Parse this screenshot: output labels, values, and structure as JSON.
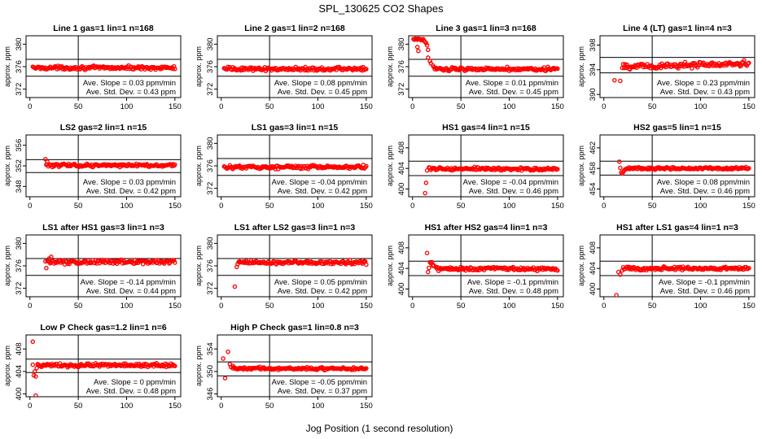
{
  "title": "SPL_130625  CO2 Shapes",
  "xlabel": "Jog Position (1 second resolution)",
  "colors": {
    "points": "#ff0000",
    "axes": "#000000"
  },
  "chart_data": [
    {
      "type": "scatter",
      "title": "Line 1 gas=1 lin=1 n=168",
      "ylabel": "approx. ppm",
      "xlim": [
        -4,
        156
      ],
      "ylim": [
        370.5,
        381.5
      ],
      "xticks": [
        0,
        50,
        100,
        150
      ],
      "yticks": [
        372,
        376,
        380
      ],
      "hlines": [
        377.3,
        374.3
      ],
      "vline": 50,
      "slope": "Ave. Slope = 0.03  ppm/min",
      "stddev": "Ave. Std. Dev. = 0.43  ppm",
      "start_x": 1,
      "settle_x": 3,
      "initial": [],
      "baseline": 375.8,
      "noise": 0.18,
      "points": []
    },
    {
      "type": "scatter",
      "title": "Line 2 gas=1 lin=2 n=168",
      "ylabel": "approx. ppm",
      "xlim": [
        -4,
        156
      ],
      "ylim": [
        370.5,
        381.5
      ],
      "xticks": [
        0,
        50,
        100,
        150
      ],
      "yticks": [
        372,
        376,
        380
      ],
      "hlines": [
        377.3,
        374.3
      ],
      "vline": 50,
      "slope": "Ave. Slope = 0.08  ppm/min",
      "stddev": "Ave. Std. Dev. = 0.45  ppm",
      "start_x": 1,
      "settle_x": 3,
      "initial": [],
      "baseline": 375.6,
      "noise": 0.2,
      "points": []
    },
    {
      "type": "scatter",
      "title": "Line 3 gas=1 lin=3 n=168",
      "ylabel": "approx. ppm",
      "xlim": [
        -4,
        156
      ],
      "ylim": [
        370.5,
        381.5
      ],
      "xticks": [
        0,
        50,
        100,
        150
      ],
      "yticks": [
        372,
        376,
        380
      ],
      "hlines": [
        377.3,
        374.3
      ],
      "vline": 50,
      "slope": "Ave. Slope = 0.01  ppm/min",
      "stddev": "Ave. Std. Dev. = 0.45  ppm",
      "start_x": 1,
      "settle_x": 22,
      "initial": [
        [
          1,
          380.9
        ],
        [
          2,
          380.8
        ],
        [
          3,
          381.0
        ],
        [
          4,
          380.9
        ],
        [
          5,
          380.8
        ],
        [
          6,
          381.0
        ],
        [
          7,
          380.9
        ],
        [
          8,
          380.9
        ],
        [
          9,
          380.7
        ],
        [
          10,
          380.8
        ],
        [
          11,
          380.9
        ],
        [
          12,
          380.6
        ],
        [
          13,
          380.4
        ],
        [
          5,
          379.5
        ],
        [
          6,
          378.8
        ],
        [
          14,
          380.2
        ],
        [
          15,
          379.8
        ],
        [
          16,
          379.0
        ],
        [
          16,
          377.6
        ],
        [
          18,
          377.0
        ],
        [
          19,
          376.6
        ],
        [
          21,
          376.2
        ]
      ],
      "baseline": 375.6,
      "noise": 0.18,
      "points": []
    },
    {
      "type": "scatter",
      "title": "Line 4 (LT) gas=1 lin=4 n=3",
      "ylabel": "approx. ppm",
      "xlim": [
        -4,
        156
      ],
      "ylim": [
        389.5,
        399.5
      ],
      "xticks": [
        0,
        50,
        100,
        150
      ],
      "yticks": [
        390,
        394,
        398
      ],
      "hlines": [
        396.0,
        393.5
      ],
      "vline": 50,
      "slope": "Ave. Slope = 0.23  ppm/min",
      "stddev": "Ave. Std. Dev. = 0.43  ppm",
      "start_x": 20,
      "settle_x": 22,
      "initial": [
        [
          11,
          392.3
        ],
        [
          17,
          392.2
        ],
        [
          19,
          394.3
        ],
        [
          20,
          394.9
        ],
        [
          21,
          394.3
        ]
      ],
      "baseline": 394.7,
      "trend": 0.004,
      "noise": 0.3,
      "points": []
    },
    {
      "type": "scatter",
      "title": "LS2 gas=2 lin=1 n=15",
      "ylabel": "approx. ppm",
      "xlim": [
        -4,
        156
      ],
      "ylim": [
        346,
        358
      ],
      "xticks": [
        0,
        50,
        100,
        150
      ],
      "yticks": [
        348,
        352,
        356
      ],
      "hlines": [
        353.2,
        350.7
      ],
      "vline": 50,
      "slope": "Ave. Slope = 0.03  ppm/min",
      "stddev": "Ave. Std. Dev. = 0.42  ppm",
      "start_x": 16,
      "settle_x": 18,
      "initial": [
        [
          16,
          353.3
        ],
        [
          17,
          352.2
        ],
        [
          18,
          352.8
        ]
      ],
      "baseline": 352.1,
      "noise": 0.18,
      "points": []
    },
    {
      "type": "scatter",
      "title": "LS1 gas=3 lin=1 n=15",
      "ylabel": "approx. ppm",
      "xlim": [
        -4,
        156
      ],
      "ylim": [
        370.5,
        381.5
      ],
      "xticks": [
        0,
        50,
        100,
        150
      ],
      "yticks": [
        372,
        376,
        380
      ],
      "hlines": [
        377.3,
        374.3
      ],
      "vline": 50,
      "slope": "Ave. Slope = -0.04  ppm/min",
      "stddev": "Ave. Std. Dev. = 0.42  ppm",
      "start_x": 1,
      "settle_x": 3,
      "initial": [],
      "baseline": 375.8,
      "noise": 0.18,
      "points": []
    },
    {
      "type": "scatter",
      "title": "HS1 gas=4 lin=1 n=15",
      "ylabel": "approx. ppm",
      "xlim": [
        -4,
        156
      ],
      "ylim": [
        398.5,
        410.5
      ],
      "xticks": [
        0,
        50,
        100,
        150
      ],
      "yticks": [
        400,
        404,
        408
      ],
      "hlines": [
        405.4,
        402.6
      ],
      "vline": 50,
      "slope": "Ave. Slope = -0.04  ppm/min",
      "stddev": "Ave. Std. Dev. = 0.46  ppm",
      "start_x": 15,
      "settle_x": 17,
      "initial": [
        [
          13,
          399.2
        ],
        [
          14,
          401.2
        ],
        [
          15,
          403.6
        ]
      ],
      "baseline": 403.9,
      "noise": 0.18,
      "points": []
    },
    {
      "type": "scatter",
      "title": "HS2 gas=5 lin=1 n=15",
      "ylabel": "approx. ppm",
      "xlim": [
        -4,
        156
      ],
      "ylim": [
        452.5,
        464.5
      ],
      "xticks": [
        0,
        50,
        100,
        150
      ],
      "yticks": [
        454,
        458,
        462
      ],
      "hlines": [
        459.4,
        456.7
      ],
      "vline": 50,
      "slope": "Ave. Slope = 0.08  ppm/min",
      "stddev": "Ave. Std. Dev. = 0.46  ppm",
      "start_x": 16,
      "settle_x": 26,
      "initial": [
        [
          16,
          459.3
        ],
        [
          17,
          458.1
        ],
        [
          18,
          457.2
        ],
        [
          19,
          457.0
        ],
        [
          20,
          457.3
        ],
        [
          21,
          457.6
        ],
        [
          22,
          457.8
        ],
        [
          23,
          457.9
        ],
        [
          24,
          458.0
        ],
        [
          25,
          457.9
        ]
      ],
      "baseline": 458.0,
      "noise": 0.16,
      "points": []
    },
    {
      "type": "scatter",
      "title": "LS1 after HS1 gas=3 lin=1 n=3",
      "ylabel": "approx. ppm",
      "xlim": [
        -4,
        156
      ],
      "ylim": [
        370.5,
        381.5
      ],
      "xticks": [
        0,
        50,
        100,
        150
      ],
      "yticks": [
        372,
        376,
        380
      ],
      "hlines": [
        377.3,
        374.3
      ],
      "vline": 50,
      "slope": "Ave. Slope = -0.14  ppm/min",
      "stddev": "Ave. Std. Dev. = 0.44  ppm",
      "start_x": 16,
      "settle_x": 18,
      "initial": [
        [
          16,
          376.8
        ],
        [
          17,
          375.6
        ],
        [
          20,
          377.3
        ],
        [
          22,
          377.6
        ]
      ],
      "baseline": 376.7,
      "noise": 0.22,
      "points": []
    },
    {
      "type": "scatter",
      "title": "LS1 after LS2 gas=3 lin=1 n=3",
      "ylabel": "approx. ppm",
      "xlim": [
        -4,
        156
      ],
      "ylim": [
        370.5,
        381.5
      ],
      "xticks": [
        0,
        50,
        100,
        150
      ],
      "yticks": [
        372,
        376,
        380
      ],
      "hlines": [
        377.3,
        374.3
      ],
      "vline": 50,
      "slope": "Ave. Slope = 0.05  ppm/min",
      "stddev": "Ave. Std. Dev. = 0.42  ppm",
      "start_x": 16,
      "settle_x": 20,
      "initial": [
        [
          14,
          372.3
        ],
        [
          16,
          375.8
        ],
        [
          17,
          376.3
        ],
        [
          18,
          376.7
        ],
        [
          19,
          376.8
        ]
      ],
      "baseline": 376.6,
      "noise": 0.2,
      "points": []
    },
    {
      "type": "scatter",
      "title": "HS1 after HS2 gas=4 lin=1 n=3",
      "ylabel": "approx. ppm",
      "xlim": [
        -4,
        156
      ],
      "ylim": [
        398.5,
        410.5
      ],
      "xticks": [
        0,
        50,
        100,
        150
      ],
      "yticks": [
        400,
        404,
        408
      ],
      "hlines": [
        405.4,
        402.6
      ],
      "vline": 50,
      "slope": "Ave. Slope = -0.1  ppm/min",
      "stddev": "Ave. Std. Dev. = 0.48  ppm",
      "start_x": 16,
      "settle_x": 26,
      "initial": [
        [
          15,
          407.0
        ],
        [
          16,
          403.3
        ],
        [
          17,
          404.1
        ],
        [
          18,
          405.2
        ],
        [
          19,
          405.0
        ],
        [
          20,
          405.2
        ],
        [
          21,
          404.5
        ],
        [
          22,
          404.6
        ],
        [
          24,
          404.3
        ],
        [
          25,
          404.0
        ]
      ],
      "baseline": 403.9,
      "noise": 0.2,
      "points": []
    },
    {
      "type": "scatter",
      "title": "HS1 after LS1 gas=4 lin=1 n=3",
      "ylabel": "approx. ppm",
      "xlim": [
        -4,
        156
      ],
      "ylim": [
        398.5,
        410.5
      ],
      "xticks": [
        0,
        50,
        100,
        150
      ],
      "yticks": [
        400,
        404,
        408
      ],
      "hlines": [
        405.4,
        402.6
      ],
      "vline": 50,
      "slope": "Ave. Slope = -0.1  ppm/min",
      "stddev": "Ave. Std. Dev. = 0.46  ppm",
      "start_x": 18,
      "settle_x": 20,
      "initial": [
        [
          13,
          398.8
        ],
        [
          15,
          403.3
        ],
        [
          17,
          402.8
        ],
        [
          19,
          403.6
        ]
      ],
      "baseline": 404.0,
      "noise": 0.2,
      "points": []
    },
    {
      "type": "scatter",
      "title": "Low P Check gas=1.2 lin=1 n=6",
      "ylabel": "approx. ppm",
      "xlim": [
        -4,
        156
      ],
      "ylim": [
        399.5,
        410.5
      ],
      "xticks": [
        0,
        50,
        100,
        150
      ],
      "yticks": [
        400,
        404,
        408
      ],
      "hlines": [
        406.2,
        403.8
      ],
      "vline": 50,
      "slope": "Ave. Slope = 0  ppm/min",
      "stddev": "Ave. Std. Dev. = 0.48  ppm",
      "start_x": 6,
      "settle_x": 8,
      "initial": [
        [
          3,
          409.3
        ],
        [
          3,
          405.2
        ],
        [
          4,
          403.3
        ],
        [
          5,
          404.0
        ],
        [
          6,
          403.1
        ],
        [
          7,
          404.6
        ],
        [
          8,
          405.3
        ],
        [
          6,
          399.7
        ]
      ],
      "baseline": 405.1,
      "noise": 0.2,
      "points": []
    },
    {
      "type": "scatter",
      "title": "High P Check gas=1 lin=0.8 n=3",
      "ylabel": "approx. ppm",
      "xlim": [
        -4,
        156
      ],
      "ylim": [
        345.5,
        356.5
      ],
      "xticks": [
        0,
        50,
        100,
        150
      ],
      "yticks": [
        346,
        350,
        354
      ],
      "hlines": [
        351.7,
        349.2
      ],
      "vline": 50,
      "slope": "Ave. Slope = -0.05  ppm/min",
      "stddev": "Ave. Std. Dev. = 0.37  ppm",
      "start_x": 10,
      "settle_x": 12,
      "initial": [
        [
          2,
          352.3
        ],
        [
          4,
          348.8
        ],
        [
          7,
          353.5
        ],
        [
          9,
          351.3
        ],
        [
          10,
          350.8
        ],
        [
          12,
          351.0
        ]
      ],
      "baseline": 350.5,
      "noise": 0.15,
      "points": []
    }
  ]
}
